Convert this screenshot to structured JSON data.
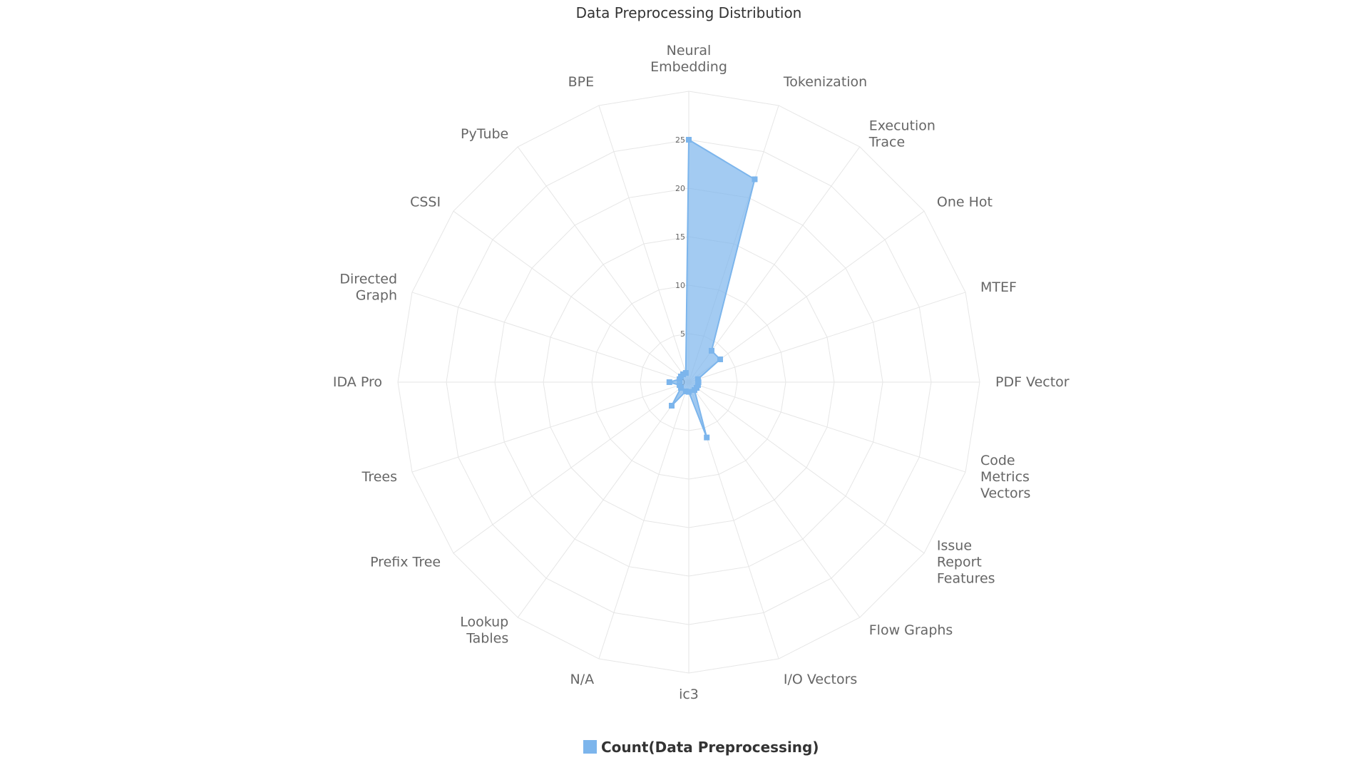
{
  "chart_data": {
    "type": "radar",
    "title": "Data Preprocessing Distribution",
    "categories": [
      "Neural Embedding",
      "Tokenization",
      "Execution Trace",
      "One Hot",
      "MTEF",
      "PDF Vector",
      "Code Metrics Vectors",
      "Issue Report Features",
      "Flow Graphs",
      "I/O Vectors",
      "ic3",
      "N/A",
      "Lookup Tables",
      "Prefix Tree",
      "Trees",
      "IDA Pro",
      "Directed Graph",
      "CSSI",
      "PyTube",
      "BPE"
    ],
    "series": [
      {
        "name": "Count(Data Preprocessing)",
        "color": "#7cb5ec",
        "values": [
          25,
          22,
          4,
          4,
          1,
          1,
          1,
          1,
          1,
          6,
          1,
          1,
          3,
          1,
          1,
          2,
          1,
          1,
          1,
          1
        ]
      }
    ],
    "radial_ticks": [
      0,
      5,
      10,
      15,
      20,
      25
    ],
    "rlim": [
      0,
      30
    ],
    "grid": true,
    "legend_position": "bottom-center"
  }
}
